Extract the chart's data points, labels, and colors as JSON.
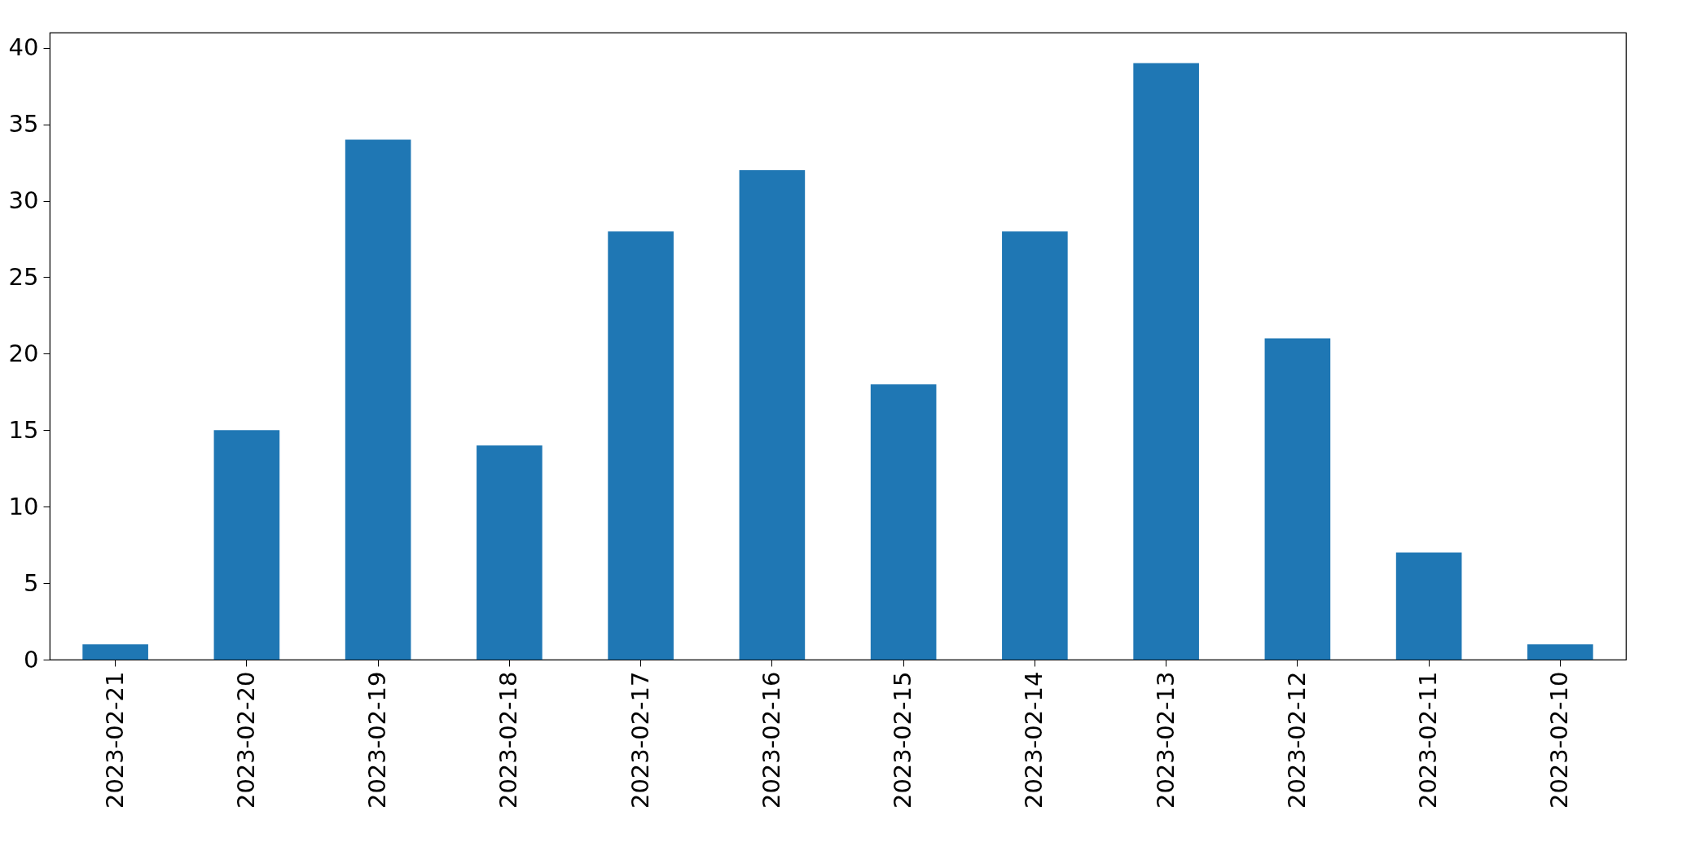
{
  "chart_data": {
    "type": "bar",
    "categories": [
      "2023-02-21",
      "2023-02-20",
      "2023-02-19",
      "2023-02-18",
      "2023-02-17",
      "2023-02-16",
      "2023-02-15",
      "2023-02-14",
      "2023-02-13",
      "2023-02-12",
      "2023-02-11",
      "2023-02-10"
    ],
    "values": [
      1,
      15,
      34,
      14,
      28,
      32,
      18,
      28,
      39,
      21,
      7,
      1
    ],
    "color": "#1f77b4",
    "ylim": [
      0,
      41
    ],
    "yticks": [
      0,
      5,
      10,
      15,
      20,
      25,
      30,
      35,
      40
    ],
    "grid": false
  }
}
